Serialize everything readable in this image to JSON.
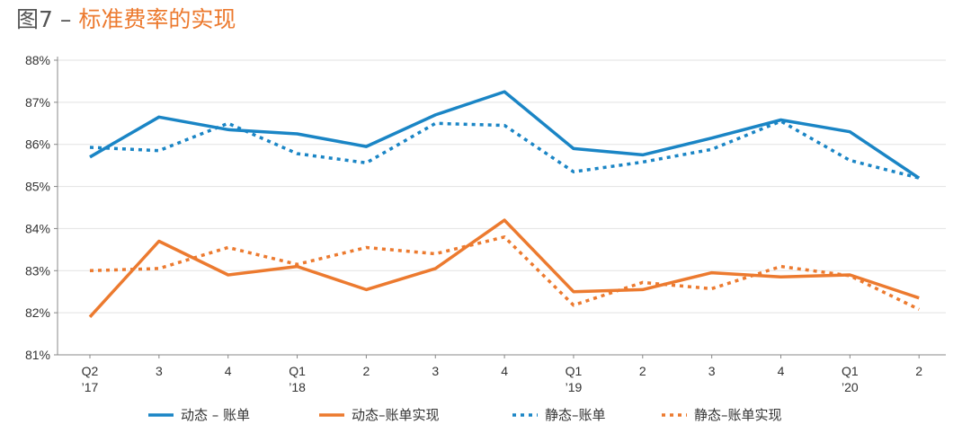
{
  "figure": {
    "number": "图7",
    "separator": " – ",
    "heading": "标准费率的实现"
  },
  "colors": {
    "blue": "#1a85c5",
    "orange": "#ec7a2f",
    "grid": "#e2e2e2",
    "axis": "#888888"
  },
  "chart_data": {
    "type": "line",
    "title": "图7 – 标准费率的实现",
    "xlabel": "",
    "ylabel": "",
    "ylim": [
      81,
      88
    ],
    "yticks": [
      "81%",
      "82%",
      "83%",
      "84%",
      "85%",
      "86%",
      "87%",
      "88%"
    ],
    "categories": [
      [
        "Q2",
        "’17"
      ],
      [
        "3"
      ],
      [
        "4"
      ],
      [
        "Q1",
        "’18"
      ],
      [
        "2"
      ],
      [
        "3"
      ],
      [
        "4"
      ],
      [
        "Q1",
        "’19"
      ],
      [
        "2"
      ],
      [
        "3"
      ],
      [
        "4"
      ],
      [
        "Q1",
        "’20"
      ],
      [
        "2"
      ]
    ],
    "series": [
      {
        "name": "动态 – 账单",
        "style": "solid",
        "color": "#1a85c5",
        "values": [
          85.7,
          86.65,
          86.35,
          86.25,
          85.95,
          86.7,
          87.25,
          85.9,
          85.75,
          86.15,
          86.58,
          86.3,
          85.2
        ]
      },
      {
        "name": "动态–账单实现",
        "style": "solid",
        "color": "#ec7a2f",
        "values": [
          81.9,
          83.7,
          82.9,
          83.1,
          82.55,
          83.05,
          84.2,
          82.5,
          82.55,
          82.95,
          82.85,
          82.9,
          82.35
        ]
      },
      {
        "name": "静态–账单",
        "style": "dotted",
        "color": "#1a85c5",
        "values": [
          85.93,
          85.85,
          86.5,
          85.78,
          85.56,
          86.5,
          86.45,
          85.35,
          85.58,
          85.88,
          86.55,
          85.62,
          85.2
        ]
      },
      {
        "name": "静态–账单实现",
        "style": "dotted",
        "color": "#ec7a2f",
        "values": [
          83.0,
          83.05,
          83.55,
          83.15,
          83.55,
          83.4,
          83.8,
          82.18,
          82.72,
          82.57,
          83.1,
          82.88,
          82.08
        ]
      }
    ],
    "legend": "bottom"
  }
}
